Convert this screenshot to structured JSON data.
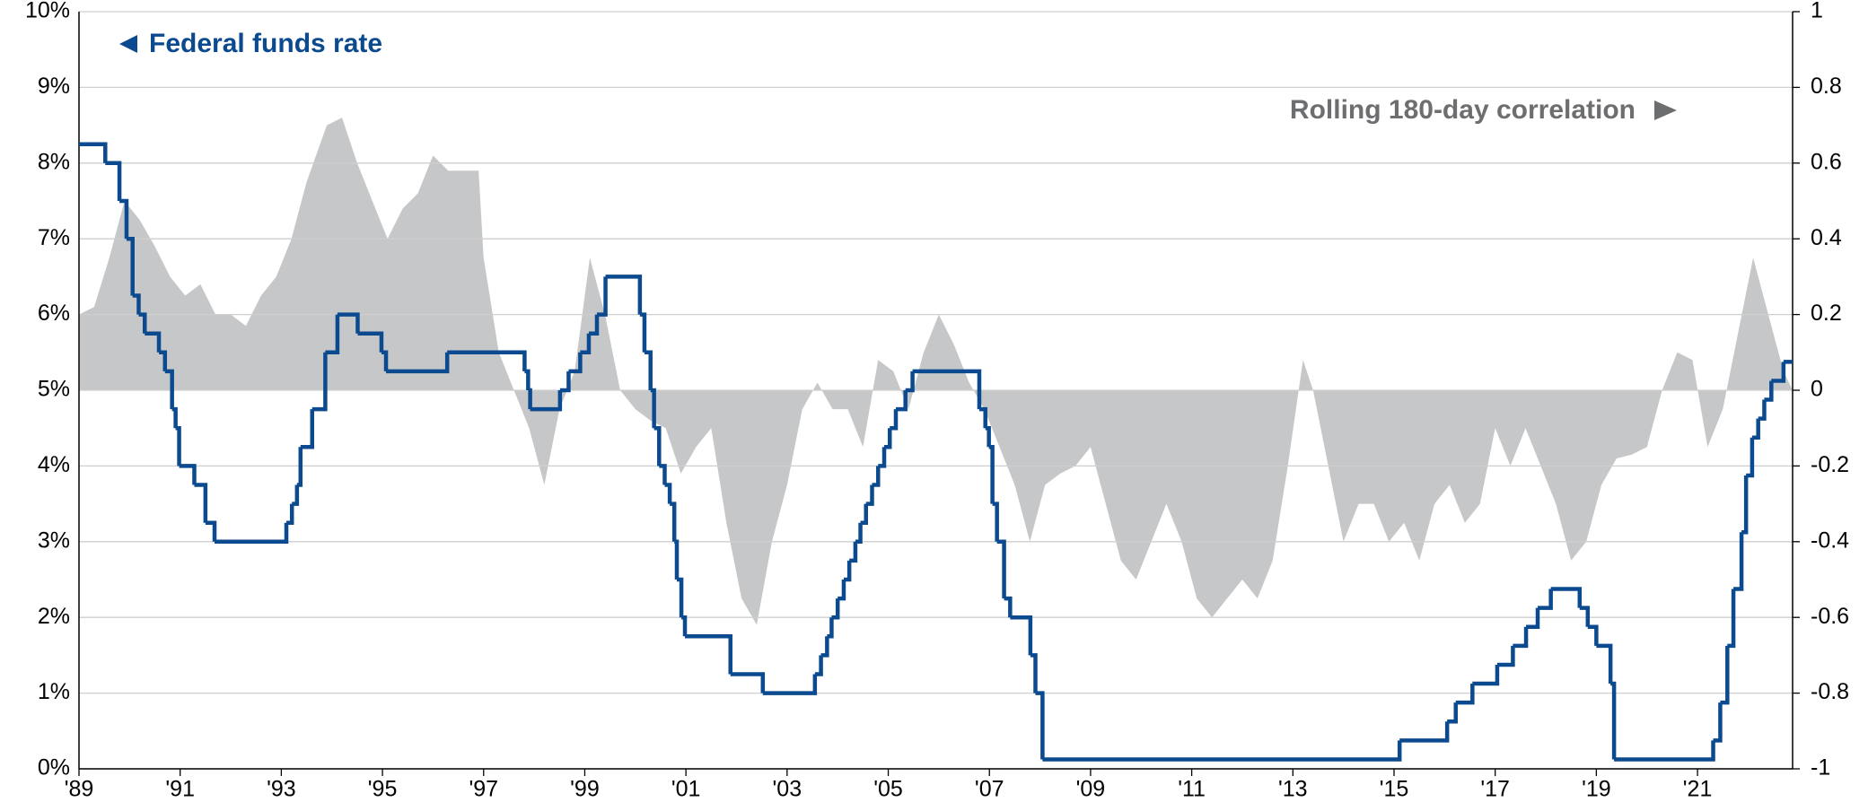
{
  "chart_data": {
    "type": "line",
    "xlim": [
      1989,
      2022.88
    ],
    "xticks": [
      {
        "value": 1989,
        "label": "'89"
      },
      {
        "value": 1991,
        "label": "'91"
      },
      {
        "value": 1993,
        "label": "'93"
      },
      {
        "value": 1995,
        "label": "'95"
      },
      {
        "value": 1997,
        "label": "'97"
      },
      {
        "value": 1999,
        "label": "'99"
      },
      {
        "value": 2001,
        "label": "'01"
      },
      {
        "value": 2003,
        "label": "'03"
      },
      {
        "value": 2005,
        "label": "'05"
      },
      {
        "value": 2007,
        "label": "'07"
      },
      {
        "value": 2009,
        "label": "'09"
      },
      {
        "value": 2011,
        "label": "'11"
      },
      {
        "value": 2013,
        "label": "'13"
      },
      {
        "value": 2015,
        "label": "'15"
      },
      {
        "value": 2017,
        "label": "'17"
      },
      {
        "value": 2019,
        "label": "'19"
      },
      {
        "value": 2021,
        "label": "'21"
      }
    ],
    "ylim": [
      0,
      10
    ],
    "yticks": [
      {
        "value": 0,
        "label": "0%"
      },
      {
        "value": 1,
        "label": "1%"
      },
      {
        "value": 2,
        "label": "2%"
      },
      {
        "value": 3,
        "label": "3%"
      },
      {
        "value": 4,
        "label": "4%"
      },
      {
        "value": 5,
        "label": "5%"
      },
      {
        "value": 6,
        "label": "6%"
      },
      {
        "value": 7,
        "label": "7%"
      },
      {
        "value": 8,
        "label": "8%"
      },
      {
        "value": 9,
        "label": "9%"
      },
      {
        "value": 10,
        "label": "10%"
      }
    ],
    "y2lim": [
      -1,
      1
    ],
    "y2ticks": [
      -1,
      -0.8,
      -0.6,
      -0.4,
      -0.2,
      0,
      0.2,
      0.4,
      0.6,
      0.8,
      1
    ],
    "grid": true,
    "series": [
      {
        "name": "Federal funds rate",
        "color": "#0b4a8f",
        "drawstyle": "steps-post",
        "x": [
          1989.0,
          1989.52,
          1989.8,
          1989.94,
          1990.06,
          1990.18,
          1990.3,
          1990.58,
          1990.7,
          1990.84,
          1990.91,
          1990.98,
          1991.28,
          1991.5,
          1991.68,
          1993.1,
          1993.21,
          1993.31,
          1993.38,
          1993.61,
          1993.87,
          1994.11,
          1994.51,
          1994.98,
          1995.07,
          1996.28,
          1997.81,
          1997.88,
          1997.92,
          1998.51,
          1998.68,
          1998.91,
          1999.08,
          1999.24,
          1999.41,
          2000.09,
          2000.18,
          2000.3,
          2000.37,
          2000.47,
          2000.58,
          2000.68,
          2000.77,
          2000.82,
          2000.91,
          2000.98,
          2001.88,
          2002.52,
          2003.55,
          2003.67,
          2003.79,
          2003.88,
          2004.0,
          2004.12,
          2004.23,
          2004.35,
          2004.45,
          2004.56,
          2004.68,
          2004.8,
          2004.92,
          2005.03,
          2005.15,
          2005.34,
          2005.48,
          2006.8,
          2006.92,
          2006.99,
          2007.06,
          2007.15,
          2007.29,
          2007.41,
          2007.81,
          2007.91,
          2008.05,
          2015.11,
          2016.05,
          2016.22,
          2016.55,
          2017.04,
          2017.35,
          2017.61,
          2017.84,
          2018.1,
          2018.67,
          2018.83,
          2019.0,
          2019.28,
          2019.35,
          2021.31,
          2021.45,
          2021.59,
          2021.71,
          2021.87,
          2021.96,
          2022.08,
          2022.2,
          2022.32,
          2022.46,
          2022.7,
          2022.88
        ],
        "values": [
          8.25,
          8.0,
          7.5,
          7.0,
          6.25,
          6.0,
          5.75,
          5.5,
          5.25,
          4.75,
          4.5,
          4.0,
          3.75,
          3.25,
          3.0,
          3.25,
          3.5,
          3.75,
          4.25,
          4.75,
          5.5,
          6.0,
          5.75,
          5.5,
          5.25,
          5.5,
          5.25,
          5.0,
          4.75,
          5.0,
          5.25,
          5.5,
          5.75,
          6.0,
          6.5,
          6.0,
          5.5,
          5.0,
          4.5,
          4.0,
          3.75,
          3.5,
          3.0,
          2.5,
          2.0,
          1.75,
          1.25,
          1.0,
          1.25,
          1.5,
          1.75,
          2.0,
          2.25,
          2.5,
          2.75,
          3.0,
          3.25,
          3.5,
          3.75,
          4.0,
          4.25,
          4.5,
          4.75,
          5.0,
          5.25,
          4.75,
          4.5,
          4.25,
          3.5,
          3.0,
          2.25,
          2.0,
          1.5,
          1.0,
          0.125,
          0.375,
          0.625,
          0.875,
          1.125,
          1.375,
          1.625,
          1.875,
          2.125,
          2.375,
          2.125,
          1.875,
          1.625,
          1.125,
          0.125,
          0.375,
          0.875,
          1.625,
          2.375,
          3.125,
          3.875,
          4.375,
          4.625,
          4.875,
          5.125,
          5.375,
          5.375
        ]
      },
      {
        "name": "Rolling 180-day correlation",
        "color": "#c6c7c9",
        "axis": "y2",
        "x": [
          1989.0,
          1989.3,
          1989.6,
          1989.9,
          1990.2,
          1990.5,
          1990.8,
          1991.1,
          1991.4,
          1991.7,
          1992.0,
          1992.3,
          1992.6,
          1992.9,
          1993.2,
          1993.5,
          1993.9,
          1994.2,
          1994.5,
          1994.8,
          1995.1,
          1995.4,
          1995.7,
          1996.0,
          1996.3,
          1996.6,
          1996.9,
          1997.0,
          1997.3,
          1997.6,
          1997.9,
          1998.2,
          1998.5,
          1998.8,
          1999.1,
          1999.4,
          1999.7,
          2000.0,
          2000.3,
          2000.6,
          2000.9,
          2001.2,
          2001.5,
          2001.8,
          2002.1,
          2002.4,
          2002.7,
          2003.0,
          2003.3,
          2003.6,
          2003.9,
          2004.2,
          2004.5,
          2004.8,
          2005.1,
          2005.4,
          2005.7,
          2006.0,
          2006.3,
          2006.6,
          2006.9,
          2007.2,
          2007.5,
          2007.8,
          2008.1,
          2008.4,
          2008.7,
          2009.0,
          2009.3,
          2009.6,
          2009.9,
          2010.2,
          2010.5,
          2010.8,
          2011.1,
          2011.4,
          2011.7,
          2012.0,
          2012.3,
          2012.6,
          2012.9,
          2013.2,
          2013.4,
          2013.7,
          2014.0,
          2014.3,
          2014.6,
          2014.9,
          2015.2,
          2015.5,
          2015.8,
          2016.1,
          2016.4,
          2016.7,
          2017.0,
          2017.3,
          2017.6,
          2017.9,
          2018.2,
          2018.5,
          2018.8,
          2019.1,
          2019.4,
          2019.7,
          2020.0,
          2020.3,
          2020.6,
          2020.9,
          2021.2,
          2021.5,
          2021.8,
          2022.1,
          2022.4,
          2022.7,
          2022.88
        ],
        "values": [
          0.2,
          0.22,
          0.35,
          0.5,
          0.45,
          0.38,
          0.3,
          0.25,
          0.28,
          0.2,
          0.2,
          0.17,
          0.25,
          0.3,
          0.4,
          0.55,
          0.7,
          0.72,
          0.6,
          0.5,
          0.4,
          0.48,
          0.52,
          0.62,
          0.58,
          0.58,
          0.58,
          0.35,
          0.1,
          0.0,
          -0.1,
          -0.25,
          -0.05,
          0.05,
          0.35,
          0.2,
          0.0,
          -0.05,
          -0.08,
          -0.1,
          -0.22,
          -0.15,
          -0.1,
          -0.35,
          -0.55,
          -0.62,
          -0.4,
          -0.25,
          -0.05,
          0.02,
          -0.05,
          -0.05,
          -0.15,
          0.08,
          0.05,
          -0.05,
          0.1,
          0.2,
          0.12,
          0.02,
          -0.05,
          -0.15,
          -0.25,
          -0.4,
          -0.25,
          -0.22,
          -0.2,
          -0.15,
          -0.3,
          -0.45,
          -0.5,
          -0.4,
          -0.3,
          -0.4,
          -0.55,
          -0.6,
          -0.55,
          -0.5,
          -0.55,
          -0.45,
          -0.2,
          0.08,
          0.0,
          -0.2,
          -0.4,
          -0.3,
          -0.3,
          -0.4,
          -0.35,
          -0.45,
          -0.3,
          -0.25,
          -0.35,
          -0.3,
          -0.1,
          -0.2,
          -0.1,
          -0.2,
          -0.3,
          -0.45,
          -0.4,
          -0.25,
          -0.18,
          -0.17,
          -0.15,
          0.0,
          0.1,
          0.08,
          -0.15,
          -0.05,
          0.15,
          0.35,
          0.2,
          0.05,
          0.0
        ]
      }
    ]
  }
}
